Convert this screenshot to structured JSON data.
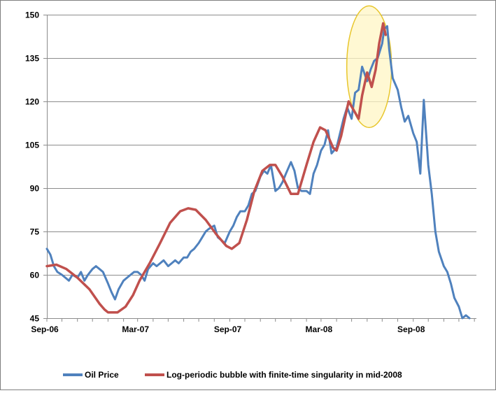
{
  "chart_data": {
    "type": "line",
    "title": "",
    "xlabel": "",
    "ylabel": "",
    "x_tick_labels": [
      "Sep-06",
      "Mar-07",
      "Sep-07",
      "Mar-08",
      "Sep-08"
    ],
    "y_ticks": [
      45,
      60,
      75,
      90,
      105,
      120,
      135,
      150
    ],
    "ylim": [
      45,
      150
    ],
    "xlim": [
      "2006-09-01",
      "2009-01-05"
    ],
    "grid": "horizontal",
    "legend_position": "bottom",
    "annotation": "yellow ellipse highlighting the mid-2008 peak",
    "series": [
      {
        "name": "Oil Price",
        "color": "#4f81bd",
        "points": [
          [
            "2006-09-01",
            69
          ],
          [
            "2006-09-08",
            67
          ],
          [
            "2006-09-15",
            63
          ],
          [
            "2006-09-22",
            61
          ],
          [
            "2006-10-01",
            60
          ],
          [
            "2006-10-08",
            59
          ],
          [
            "2006-10-15",
            58
          ],
          [
            "2006-10-22",
            60
          ],
          [
            "2006-11-01",
            59
          ],
          [
            "2006-11-08",
            61
          ],
          [
            "2006-11-15",
            58
          ],
          [
            "2006-11-22",
            60
          ],
          [
            "2006-12-01",
            62
          ],
          [
            "2006-12-08",
            63
          ],
          [
            "2006-12-15",
            62
          ],
          [
            "2006-12-22",
            61
          ],
          [
            "2007-01-01",
            57
          ],
          [
            "2007-01-08",
            54
          ],
          [
            "2007-01-15",
            51.5
          ],
          [
            "2007-01-22",
            55
          ],
          [
            "2007-02-01",
            58
          ],
          [
            "2007-02-08",
            59
          ],
          [
            "2007-02-15",
            60
          ],
          [
            "2007-02-22",
            61
          ],
          [
            "2007-03-01",
            61
          ],
          [
            "2007-03-08",
            60
          ],
          [
            "2007-03-15",
            58
          ],
          [
            "2007-03-22",
            62
          ],
          [
            "2007-04-01",
            64
          ],
          [
            "2007-04-08",
            63
          ],
          [
            "2007-04-15",
            64
          ],
          [
            "2007-04-22",
            65
          ],
          [
            "2007-05-01",
            63
          ],
          [
            "2007-05-08",
            64
          ],
          [
            "2007-05-15",
            65
          ],
          [
            "2007-05-22",
            64
          ],
          [
            "2007-06-01",
            66
          ],
          [
            "2007-06-08",
            66
          ],
          [
            "2007-06-15",
            68
          ],
          [
            "2007-06-22",
            69
          ],
          [
            "2007-07-01",
            71
          ],
          [
            "2007-07-08",
            73
          ],
          [
            "2007-07-15",
            75
          ],
          [
            "2007-07-22",
            76
          ],
          [
            "2007-08-01",
            77
          ],
          [
            "2007-08-08",
            73
          ],
          [
            "2007-08-15",
            72
          ],
          [
            "2007-08-22",
            71
          ],
          [
            "2007-09-01",
            75
          ],
          [
            "2007-09-08",
            77
          ],
          [
            "2007-09-15",
            80
          ],
          [
            "2007-09-22",
            82
          ],
          [
            "2007-10-01",
            82
          ],
          [
            "2007-10-08",
            84
          ],
          [
            "2007-10-15",
            88
          ],
          [
            "2007-10-22",
            89
          ],
          [
            "2007-11-01",
            94
          ],
          [
            "2007-11-08",
            96
          ],
          [
            "2007-11-15",
            95
          ],
          [
            "2007-11-22",
            98
          ],
          [
            "2007-12-01",
            89
          ],
          [
            "2007-12-08",
            90
          ],
          [
            "2007-12-15",
            92
          ],
          [
            "2007-12-22",
            95
          ],
          [
            "2008-01-01",
            99
          ],
          [
            "2008-01-08",
            96
          ],
          [
            "2008-01-15",
            90
          ],
          [
            "2008-01-22",
            89
          ],
          [
            "2008-02-01",
            89
          ],
          [
            "2008-02-08",
            88
          ],
          [
            "2008-02-15",
            95
          ],
          [
            "2008-02-22",
            98
          ],
          [
            "2008-03-01",
            103
          ],
          [
            "2008-03-08",
            105
          ],
          [
            "2008-03-15",
            110
          ],
          [
            "2008-03-22",
            102
          ],
          [
            "2008-04-01",
            104
          ],
          [
            "2008-04-08",
            109
          ],
          [
            "2008-04-15",
            114
          ],
          [
            "2008-04-22",
            118
          ],
          [
            "2008-05-01",
            114
          ],
          [
            "2008-05-08",
            123
          ],
          [
            "2008-05-15",
            124
          ],
          [
            "2008-05-22",
            132
          ],
          [
            "2008-06-01",
            127
          ],
          [
            "2008-06-08",
            131
          ],
          [
            "2008-06-15",
            134
          ],
          [
            "2008-06-22",
            135
          ],
          [
            "2008-07-01",
            140
          ],
          [
            "2008-07-05",
            145
          ],
          [
            "2008-07-11",
            146
          ],
          [
            "2008-07-15",
            138
          ],
          [
            "2008-07-22",
            128
          ],
          [
            "2008-08-01",
            124
          ],
          [
            "2008-08-08",
            118
          ],
          [
            "2008-08-15",
            113
          ],
          [
            "2008-08-22",
            115
          ],
          [
            "2008-09-01",
            109
          ],
          [
            "2008-09-08",
            106
          ],
          [
            "2008-09-15",
            95
          ],
          [
            "2008-09-22",
            120.5
          ],
          [
            "2008-10-01",
            98
          ],
          [
            "2008-10-08",
            88
          ],
          [
            "2008-10-15",
            75
          ],
          [
            "2008-10-22",
            68
          ],
          [
            "2008-11-01",
            63
          ],
          [
            "2008-11-08",
            61
          ],
          [
            "2008-11-15",
            57
          ],
          [
            "2008-11-22",
            52
          ],
          [
            "2008-12-01",
            49
          ],
          [
            "2008-12-08",
            45
          ],
          [
            "2008-12-15",
            46
          ],
          [
            "2008-12-22",
            41
          ]
        ]
      },
      {
        "name": "Log-periodic bubble with finite-time singularity in mid-2008",
        "color": "#c0504d",
        "points": [
          [
            "2006-09-01",
            63
          ],
          [
            "2006-09-20",
            63.5
          ],
          [
            "2006-10-10",
            62
          ],
          [
            "2006-11-01",
            59
          ],
          [
            "2006-11-25",
            55
          ],
          [
            "2006-12-15",
            50
          ],
          [
            "2006-12-25",
            48
          ],
          [
            "2007-01-01",
            47
          ],
          [
            "2007-01-20",
            47
          ],
          [
            "2007-02-05",
            49
          ],
          [
            "2007-02-20",
            53
          ],
          [
            "2007-03-05",
            58
          ],
          [
            "2007-03-25",
            64
          ],
          [
            "2007-04-15",
            71
          ],
          [
            "2007-05-05",
            78
          ],
          [
            "2007-05-25",
            82
          ],
          [
            "2007-06-10",
            83
          ],
          [
            "2007-06-25",
            82.5
          ],
          [
            "2007-07-15",
            79
          ],
          [
            "2007-08-05",
            74
          ],
          [
            "2007-08-25",
            70
          ],
          [
            "2007-09-05",
            69
          ],
          [
            "2007-09-20",
            71
          ],
          [
            "2007-10-05",
            79
          ],
          [
            "2007-10-20",
            89
          ],
          [
            "2007-11-05",
            96
          ],
          [
            "2007-11-20",
            98
          ],
          [
            "2007-12-01",
            98
          ],
          [
            "2007-12-15",
            94
          ],
          [
            "2008-01-01",
            88
          ],
          [
            "2008-01-15",
            88
          ],
          [
            "2008-02-01",
            98
          ],
          [
            "2008-02-15",
            106
          ],
          [
            "2008-02-28",
            111
          ],
          [
            "2008-03-10",
            110
          ],
          [
            "2008-03-25",
            104
          ],
          [
            "2008-04-01",
            103
          ],
          [
            "2008-04-10",
            108
          ],
          [
            "2008-04-25",
            120
          ],
          [
            "2008-05-05",
            117
          ],
          [
            "2008-05-15",
            114
          ],
          [
            "2008-05-22",
            122
          ],
          [
            "2008-06-01",
            130
          ],
          [
            "2008-06-10",
            125
          ],
          [
            "2008-06-18",
            131
          ],
          [
            "2008-06-25",
            140
          ],
          [
            "2008-07-03",
            147
          ],
          [
            "2008-07-08",
            143
          ]
        ]
      }
    ]
  }
}
